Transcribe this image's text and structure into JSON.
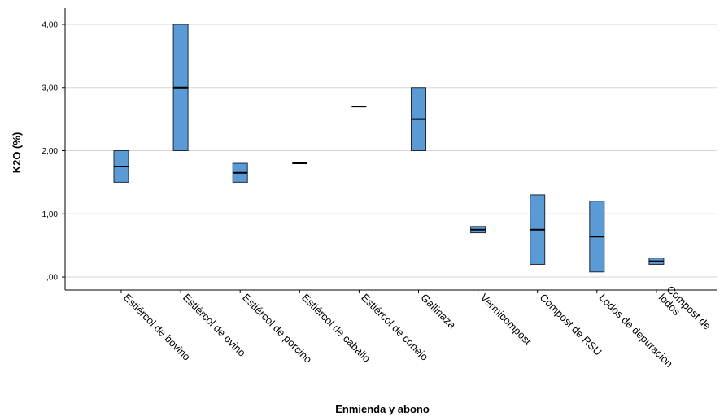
{
  "chart_data": {
    "type": "boxplot",
    "xlabel": "Enmienda y abono",
    "ylabel": "K2O (%)",
    "ylim": [
      -0.2,
      4.12
    ],
    "yticks": [
      0,
      1,
      2,
      3,
      4
    ],
    "ytick_labels": [
      ",00",
      "1,00",
      "2,00",
      "3,00",
      "4,00"
    ],
    "grid": true,
    "box_color": "#5b9bd5",
    "categories": [
      "Estiércol de bovino",
      "Estiércol de ovino",
      "Estiércol de porcino",
      "Estiércol de caballo",
      "Estiércol de conejo",
      "Gallinaza",
      "Vermicompost",
      "Compost de RSU",
      "Lodos de depuración",
      [
        "Compost de",
        "lodos"
      ]
    ],
    "boxes": [
      {
        "q1": 1.5,
        "median": 1.75,
        "q3": 2.0
      },
      {
        "q1": 2.0,
        "median": 3.0,
        "q3": 4.0
      },
      {
        "q1": 1.5,
        "median": 1.65,
        "q3": 1.8
      },
      {
        "q1": 1.8,
        "median": 1.8,
        "q3": 1.8
      },
      {
        "q1": 2.7,
        "median": 2.7,
        "q3": 2.7
      },
      {
        "q1": 2.0,
        "median": 2.5,
        "q3": 3.0
      },
      {
        "q1": 0.7,
        "median": 0.75,
        "q3": 0.8
      },
      {
        "q1": 0.2,
        "median": 0.75,
        "q3": 1.3
      },
      {
        "q1": 0.08,
        "median": 0.64,
        "q3": 1.2
      },
      {
        "q1": 0.2,
        "median": 0.25,
        "q3": 0.3
      }
    ]
  }
}
